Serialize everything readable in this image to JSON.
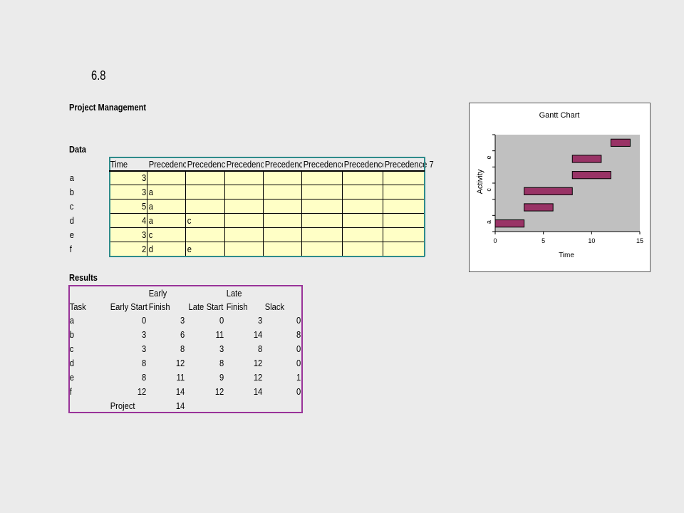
{
  "slide_number": "6.8",
  "title": "Project Management",
  "data_section": {
    "heading": "Data",
    "headers": [
      "Time",
      "Precedenc",
      "Precedenc",
      "Precedenc",
      "Precedenc",
      "Precedence",
      "Precedence",
      "Precedence 7"
    ],
    "rows": [
      {
        "task": "a",
        "time": "3",
        "prec": [
          "",
          "",
          "",
          "",
          "",
          "",
          ""
        ]
      },
      {
        "task": "b",
        "time": "3",
        "prec": [
          "a",
          "",
          "",
          "",
          "",
          "",
          ""
        ]
      },
      {
        "task": "c",
        "time": "5",
        "prec": [
          "a",
          "",
          "",
          "",
          "",
          "",
          ""
        ]
      },
      {
        "task": "d",
        "time": "4",
        "prec": [
          "a",
          "c",
          "",
          "",
          "",
          "",
          ""
        ]
      },
      {
        "task": "e",
        "time": "3",
        "prec": [
          "c",
          "",
          "",
          "",
          "",
          "",
          ""
        ]
      },
      {
        "task": "f",
        "time": "2",
        "prec": [
          "d",
          "e",
          "",
          "",
          "",
          "",
          ""
        ]
      }
    ]
  },
  "results_section": {
    "heading": "Results",
    "header_top": [
      "Early",
      "Late"
    ],
    "headers": [
      "Task",
      "Early Start",
      "Finish",
      "Late",
      "Start",
      "Finish",
      "Slack"
    ],
    "rows": [
      {
        "task": "a",
        "es": "0",
        "ef": "3",
        "ls": "0",
        "lf": "3",
        "slack": "0"
      },
      {
        "task": "b",
        "es": "3",
        "ef": "6",
        "ls": "11",
        "lf": "14",
        "slack": "8"
      },
      {
        "task": "c",
        "es": "3",
        "ef": "8",
        "ls": "3",
        "lf": "8",
        "slack": "0"
      },
      {
        "task": "d",
        "es": "8",
        "ef": "12",
        "ls": "8",
        "lf": "12",
        "slack": "0"
      },
      {
        "task": "e",
        "es": "8",
        "ef": "11",
        "ls": "9",
        "lf": "12",
        "slack": "1"
      },
      {
        "task": "f",
        "es": "12",
        "ef": "14",
        "ls": "12",
        "lf": "14",
        "slack": "0"
      }
    ],
    "project_label": "Project",
    "project_value": "14"
  },
  "chart_data": {
    "type": "bar",
    "orientation": "horizontal",
    "stacked": true,
    "title": "Gantt Chart",
    "xlabel": "Time",
    "ylabel": "Activity",
    "categories": [
      "a",
      "b",
      "c",
      "d",
      "e",
      "f"
    ],
    "category_tick_labels": [
      "a",
      "c",
      "e"
    ],
    "series": [
      {
        "values": [
          0,
          3,
          3,
          8,
          8,
          12
        ],
        "hidden": true
      },
      {
        "values": [
          3,
          3,
          5,
          4,
          3,
          2
        ]
      }
    ],
    "xlim": [
      0,
      15
    ],
    "xticks": [
      "0",
      "5",
      "10",
      "15"
    ],
    "grid": false,
    "plot_background": "#c0c0c0",
    "bar_color": "#993366"
  },
  "colors": {
    "data_border": "#2e8b8b",
    "results_border": "#993399",
    "cell_fill": "#ffffc6",
    "background": "#ebebeb"
  }
}
